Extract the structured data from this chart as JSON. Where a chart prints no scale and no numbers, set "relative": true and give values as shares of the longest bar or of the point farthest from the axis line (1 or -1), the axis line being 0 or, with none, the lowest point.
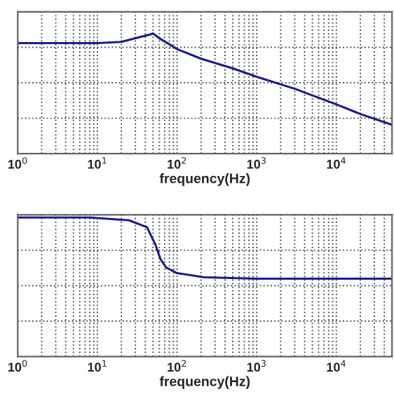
{
  "chart_data": [
    {
      "type": "line",
      "relative": true,
      "xlabel": "frequency(Hz)",
      "log": "x",
      "grid": true,
      "tick_labels": "x",
      "xlim": [
        1,
        50000
      ],
      "xticks": [
        {
          "value": 1,
          "label": "10$^{0}$"
        },
        {
          "value": 10,
          "label": "10$^{1}$"
        },
        {
          "value": 100,
          "label": "10$^{2}$"
        },
        {
          "value": 1000,
          "label": "10$^{3}$"
        },
        {
          "value": 10000,
          "label": "10$^{4}$"
        }
      ],
      "series": [
        {
          "color": "#1c1c8c",
          "x": [
            1,
            5,
            10,
            20,
            30,
            45,
            50,
            60,
            80,
            100,
            200,
            500,
            1000,
            3000,
            10000,
            20000,
            50000
          ],
          "values": [
            0.92,
            0.92,
            0.92,
            0.93,
            0.96,
            0.99,
            1.0,
            0.96,
            0.91,
            0.87,
            0.79,
            0.71,
            0.64,
            0.54,
            0.41,
            0.33,
            0.24
          ]
        }
      ]
    },
    {
      "type": "line",
      "relative": true,
      "xlabel": "frequency(Hz)",
      "log": "x",
      "grid": true,
      "tick_labels": "x",
      "xlim": [
        1,
        50000
      ],
      "xticks": [
        {
          "value": 1,
          "label": "10$^{0}$"
        },
        {
          "value": 10,
          "label": "10$^{1}$"
        },
        {
          "value": 100,
          "label": "10$^{2}$"
        },
        {
          "value": 1000,
          "label": "10$^{3}$"
        },
        {
          "value": 10000,
          "label": "10$^{4}$"
        }
      ],
      "series": [
        {
          "color": "#1c1c8c",
          "x": [
            1,
            8,
            25,
            42,
            54,
            62,
            73,
            100,
            219,
            1000,
            50000
          ],
          "values": [
            1.0,
            1.0,
            0.98,
            0.93,
            0.8,
            0.7,
            0.64,
            0.6,
            0.57,
            0.56,
            0.56
          ]
        }
      ]
    }
  ]
}
